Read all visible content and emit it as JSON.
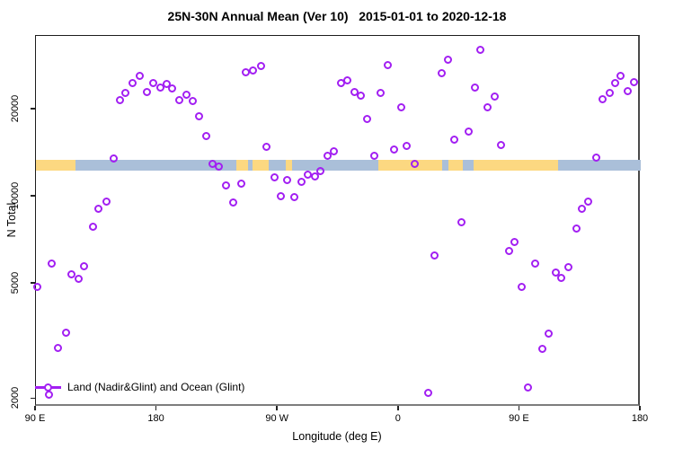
{
  "title": "25N-30N Annual Mean (Ver 10)   2015-01-01 to 2020-12-18",
  "chart_data": {
    "type": "scatter",
    "title": "25N-30N Annual Mean (Ver 10)   2015-01-01 to 2020-12-18",
    "xlabel": "Longitude (deg E)",
    "ylabel": "N Total",
    "y_scale": "log",
    "ylim": [
      1880,
      36000
    ],
    "y_ticks": [
      2000,
      5000,
      10000,
      20000
    ],
    "x_axis_deg_span": [
      0,
      450
    ],
    "x_ticks": [
      {
        "deg": 0,
        "label": "90 E"
      },
      {
        "deg": 90,
        "label": "180"
      },
      {
        "deg": 180,
        "label": "90 W"
      },
      {
        "deg": 270,
        "label": "0"
      },
      {
        "deg": 360,
        "label": "90 E"
      },
      {
        "deg": 450,
        "label": "180"
      }
    ],
    "grid": false,
    "point_color": "#A21FF2",
    "legend": {
      "label": "Land (Nadir&Glint) and Ocean (Glint)",
      "position": "bottom-left"
    },
    "map_band": {
      "land_color": "#FCD881",
      "ocean_color": "#AABFD9",
      "value_top": 13400,
      "value_bottom": 12350,
      "segments": [
        {
          "f0": 0.0,
          "f1": 0.065,
          "t": "land"
        },
        {
          "f0": 0.065,
          "f1": 0.331,
          "t": "ocean"
        },
        {
          "f0": 0.331,
          "f1": 0.351,
          "t": "land"
        },
        {
          "f0": 0.351,
          "f1": 0.358,
          "t": "ocean"
        },
        {
          "f0": 0.358,
          "f1": 0.385,
          "t": "land"
        },
        {
          "f0": 0.385,
          "f1": 0.413,
          "t": "ocean"
        },
        {
          "f0": 0.413,
          "f1": 0.423,
          "t": "land"
        },
        {
          "f0": 0.423,
          "f1": 0.566,
          "t": "ocean"
        },
        {
          "f0": 0.566,
          "f1": 0.672,
          "t": "land"
        },
        {
          "f0": 0.672,
          "f1": 0.682,
          "t": "ocean"
        },
        {
          "f0": 0.682,
          "f1": 0.706,
          "t": "land"
        },
        {
          "f0": 0.706,
          "f1": 0.724,
          "t": "ocean"
        },
        {
          "f0": 0.724,
          "f1": 0.863,
          "t": "land"
        },
        {
          "f0": 0.863,
          "f1": 1.0,
          "t": "ocean"
        }
      ]
    },
    "points": [
      [
        62.2,
        21650
      ],
      [
        66.2,
        22920
      ],
      [
        71.6,
        24800
      ],
      [
        77.0,
        26260
      ],
      [
        82.3,
        23090
      ],
      [
        87.0,
        24800
      ],
      [
        92.3,
        23930
      ],
      [
        97.0,
        24620
      ],
      [
        101.0,
        23760
      ],
      [
        106.4,
        21650
      ],
      [
        111.8,
        22590
      ],
      [
        116.4,
        21490
      ],
      [
        121.1,
        19030
      ],
      [
        126.5,
        16270
      ],
      [
        155.9,
        27020
      ],
      [
        161.3,
        27410
      ],
      [
        167.3,
        28410
      ],
      [
        226.9,
        24800
      ],
      [
        231.5,
        25340
      ],
      [
        236.9,
        23090
      ],
      [
        241.6,
        22440
      ],
      [
        256.3,
        22920
      ],
      [
        261.7,
        28620
      ],
      [
        271.7,
        20450
      ],
      [
        246.3,
        18630
      ],
      [
        330.6,
        32320
      ],
      [
        306.5,
        29870
      ],
      [
        301.8,
        26830
      ],
      [
        326.6,
        23930
      ],
      [
        341.3,
        22280
      ],
      [
        335.9,
        20450
      ],
      [
        321.9,
        16850
      ],
      [
        311.2,
        15810
      ],
      [
        346.0,
        15140
      ],
      [
        421.6,
        21800
      ],
      [
        426.9,
        22920
      ],
      [
        430.9,
        24800
      ],
      [
        434.9,
        26260
      ],
      [
        440.3,
        23260
      ],
      [
        445.0,
        24980
      ],
      [
        57.6,
        13600
      ],
      [
        131.2,
        13030
      ],
      [
        135.8,
        12750
      ],
      [
        141.2,
        10980
      ],
      [
        146.6,
        9580
      ],
      [
        52.2,
        9650
      ],
      [
        46.2,
        9110
      ],
      [
        42.2,
        7900
      ],
      [
        171.3,
        14930
      ],
      [
        221.5,
        14410
      ],
      [
        216.8,
        13900
      ],
      [
        251.6,
        13900
      ],
      [
        266.3,
        14620
      ],
      [
        275.7,
        15030
      ],
      [
        281.7,
        13030
      ],
      [
        152.6,
        11130
      ],
      [
        177.3,
        11710
      ],
      [
        186.7,
        11460
      ],
      [
        197.4,
        11290
      ],
      [
        202.1,
        11960
      ],
      [
        207.4,
        11790
      ],
      [
        211.5,
        12310
      ],
      [
        182.0,
        10070
      ],
      [
        192.1,
        10000
      ],
      [
        416.9,
        13700
      ],
      [
        410.9,
        9650
      ],
      [
        406.2,
        9110
      ],
      [
        402.2,
        7790
      ],
      [
        316.5,
        8180
      ],
      [
        356.0,
        6990
      ],
      [
        352.0,
        6510
      ],
      [
        296.4,
        6280
      ],
      [
        12.0,
        5890
      ],
      [
        26.1,
        5410
      ],
      [
        31.5,
        5220
      ],
      [
        36.1,
        5770
      ],
      [
        0.7,
        4890
      ],
      [
        22.1,
        3400
      ],
      [
        16.7,
        3010
      ],
      [
        10.0,
        2070
      ],
      [
        291.8,
        2100
      ],
      [
        371.4,
        5890
      ],
      [
        386.8,
        5480
      ],
      [
        390.8,
        5250
      ],
      [
        396.1,
        5730
      ],
      [
        361.3,
        4890
      ],
      [
        381.4,
        3370
      ],
      [
        376.7,
        2990
      ],
      [
        366.0,
        2200
      ]
    ]
  }
}
